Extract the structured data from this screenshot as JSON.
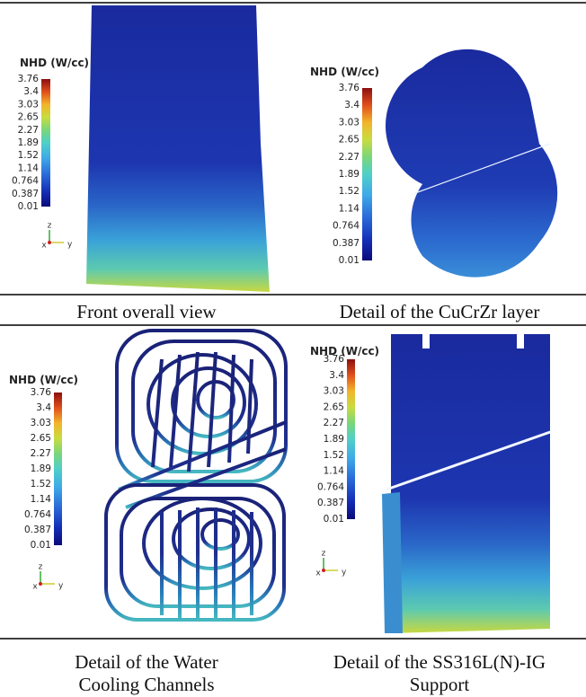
{
  "panels": [
    {
      "caption": [
        "Front overall view"
      ],
      "colorbar": {
        "title": "NHD (W/cc)",
        "labels": [
          "3.76",
          "3.4",
          "3.03",
          "2.65",
          "2.27",
          "1.89",
          "1.52",
          "1.14",
          "0.764",
          "0.387",
          "0.01"
        ]
      },
      "triad": [
        "z",
        "x",
        "y"
      ]
    },
    {
      "caption": [
        "Detail of the CuCrZr layer"
      ],
      "colorbar": {
        "title": "NHD (W/cc)",
        "labels": [
          "3.76",
          "3.4",
          "3.03",
          "2.65",
          "2.27",
          "1.89",
          "1.52",
          "1.14",
          "0.764",
          "0.387",
          "0.01"
        ]
      }
    },
    {
      "caption": [
        "Detail of the Water",
        "Cooling Channels"
      ],
      "colorbar": {
        "title": "NHD (W/cc)",
        "labels": [
          "3.76",
          "3.4",
          "3.03",
          "2.65",
          "2.27",
          "1.89",
          "1.52",
          "1.14",
          "0.764",
          "0.387",
          "0.01"
        ]
      },
      "triad": [
        "z",
        "x",
        "y"
      ]
    },
    {
      "caption": [
        "Detail of the SS316L(N)-IG",
        "Support"
      ],
      "colorbar": {
        "title": "NHD (W/cc)",
        "labels": [
          "3.76",
          "3.4",
          "3.03",
          "2.65",
          "2.27",
          "1.89",
          "1.52",
          "1.14",
          "0.764",
          "0.387",
          "0.01"
        ]
      },
      "triad": [
        "z",
        "x",
        "y"
      ]
    }
  ]
}
